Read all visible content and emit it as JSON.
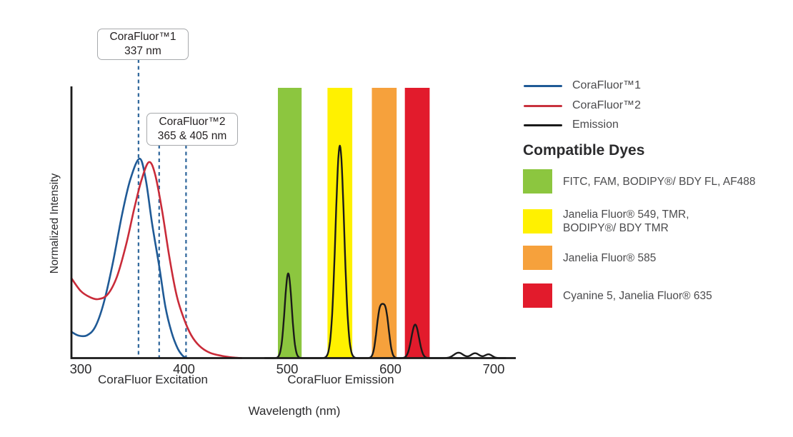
{
  "figure": {
    "y_axis_label": "Normalized Intensity",
    "x_axis_title": "Wavelength (nm)",
    "x_group_labels": {
      "excitation": "CoraFluor Excitation",
      "emission": "CoraFluor Emission"
    }
  },
  "callouts": [
    {
      "line1": "CoraFluor™1",
      "line2": "337 nm"
    },
    {
      "line1": "CoraFluor™2",
      "line2": "365 & 405 nm"
    }
  ],
  "legend": {
    "items": [
      {
        "label": "CoraFluor™1",
        "color": "#1f5a96"
      },
      {
        "label": "CoraFluor™2",
        "color": "#c8323e"
      },
      {
        "label": "Emission",
        "color": "#1a1a1a"
      }
    ]
  },
  "compatible_dyes": {
    "heading": "Compatible Dyes",
    "items": [
      {
        "color": "#8cc63f",
        "line1": "FITC, FAM, BODIPY®/ BDY FL, AF488",
        "line2": ""
      },
      {
        "color": "#fff100",
        "line1": "Janelia Fluor® 549, TMR,",
        "line2": "BODIPY®/ BDY TMR"
      },
      {
        "color": "#f6a13c",
        "line1": "Janelia Fluor® 585",
        "line2": ""
      },
      {
        "color": "#e21b2c",
        "line1": "Cyanine 5, Janelia Fluor® 635",
        "line2": ""
      }
    ]
  },
  "chart_data": {
    "type": "line",
    "title": "",
    "xlabel": "Wavelength (nm)",
    "ylabel": "Normalized Intensity",
    "x_range_nm": [
      291,
      721
    ],
    "x_ticks": [
      300,
      400,
      500,
      600,
      700
    ],
    "ylim": [
      0,
      1
    ],
    "grid": false,
    "legend_position": "top-right",
    "excitation_maxima_nm": {
      "corafluor1": 337,
      "corafluor2": [
        365,
        405
      ]
    },
    "dashed_lines": [
      {
        "label_nm": 337,
        "drawn_at_nm": 356,
        "callout": 0
      },
      {
        "label_nm": 365,
        "drawn_at_nm": 376,
        "callout": 1
      },
      {
        "label_nm": 405,
        "drawn_at_nm": 402,
        "callout": 1
      }
    ],
    "bands": [
      {
        "label": "FITC, FAM, BODIPY®/ BDY FL, AF488",
        "color": "#8cc63f",
        "from_nm": 491,
        "to_nm": 514
      },
      {
        "label": "Janelia Fluor® 549, TMR, BODIPY®/ BDY TMR",
        "color": "#fff100",
        "from_nm": 539,
        "to_nm": 563
      },
      {
        "label": "Janelia Fluor® 585",
        "color": "#f6a13c",
        "from_nm": 582,
        "to_nm": 606
      },
      {
        "label": "Cyanine 5, Janelia Fluor® 635",
        "color": "#e21b2c",
        "from_nm": 614,
        "to_nm": 638
      }
    ],
    "series": [
      {
        "name": "CoraFluor™1 excitation",
        "color": "#1f5a96",
        "points": [
          [
            291,
            0.097
          ],
          [
            298,
            0.083
          ],
          [
            306,
            0.084
          ],
          [
            314,
            0.115
          ],
          [
            322,
            0.2
          ],
          [
            331,
            0.35
          ],
          [
            340,
            0.53
          ],
          [
            348,
            0.66
          ],
          [
            357,
            0.737
          ],
          [
            363,
            0.66
          ],
          [
            369,
            0.5
          ],
          [
            376,
            0.34
          ],
          [
            382,
            0.19
          ],
          [
            388,
            0.095
          ],
          [
            394,
            0.035
          ],
          [
            399,
            0.008
          ],
          [
            403,
            0
          ]
        ]
      },
      {
        "name": "CoraFluor™2 excitation",
        "color": "#c92b39",
        "points": [
          [
            291,
            0.295
          ],
          [
            300,
            0.248
          ],
          [
            309,
            0.225
          ],
          [
            317,
            0.218
          ],
          [
            326,
            0.235
          ],
          [
            335,
            0.3
          ],
          [
            344,
            0.42
          ],
          [
            352,
            0.555
          ],
          [
            359,
            0.66
          ],
          [
            366,
            0.724
          ],
          [
            372,
            0.68
          ],
          [
            379,
            0.54
          ],
          [
            386,
            0.37
          ],
          [
            393,
            0.23
          ],
          [
            400,
            0.145
          ],
          [
            407,
            0.085
          ],
          [
            415,
            0.045
          ],
          [
            425,
            0.02
          ],
          [
            437,
            0.008
          ],
          [
            448,
            0.002
          ],
          [
            456,
            0
          ]
        ]
      },
      {
        "name": "Emission",
        "color": "#1a1a1a",
        "gaussian_peaks": [
          {
            "center_nm": 501,
            "height": 0.313,
            "sigma_nm": 3.4
          },
          {
            "center_nm": 551,
            "height": 0.785,
            "sigma_nm": 4.2
          },
          {
            "center_nm": 589.5,
            "height": 0.16,
            "sigma_nm": 3.1
          },
          {
            "center_nm": 595.5,
            "height": 0.16,
            "sigma_nm": 3.1
          },
          {
            "center_nm": 624,
            "height": 0.124,
            "sigma_nm": 3.7
          },
          {
            "center_nm": 666,
            "height": 0.02,
            "sigma_nm": 4.5
          },
          {
            "center_nm": 682,
            "height": 0.018,
            "sigma_nm": 4.0
          },
          {
            "center_nm": 695,
            "height": 0.014,
            "sigma_nm": 3.5
          }
        ]
      }
    ]
  }
}
